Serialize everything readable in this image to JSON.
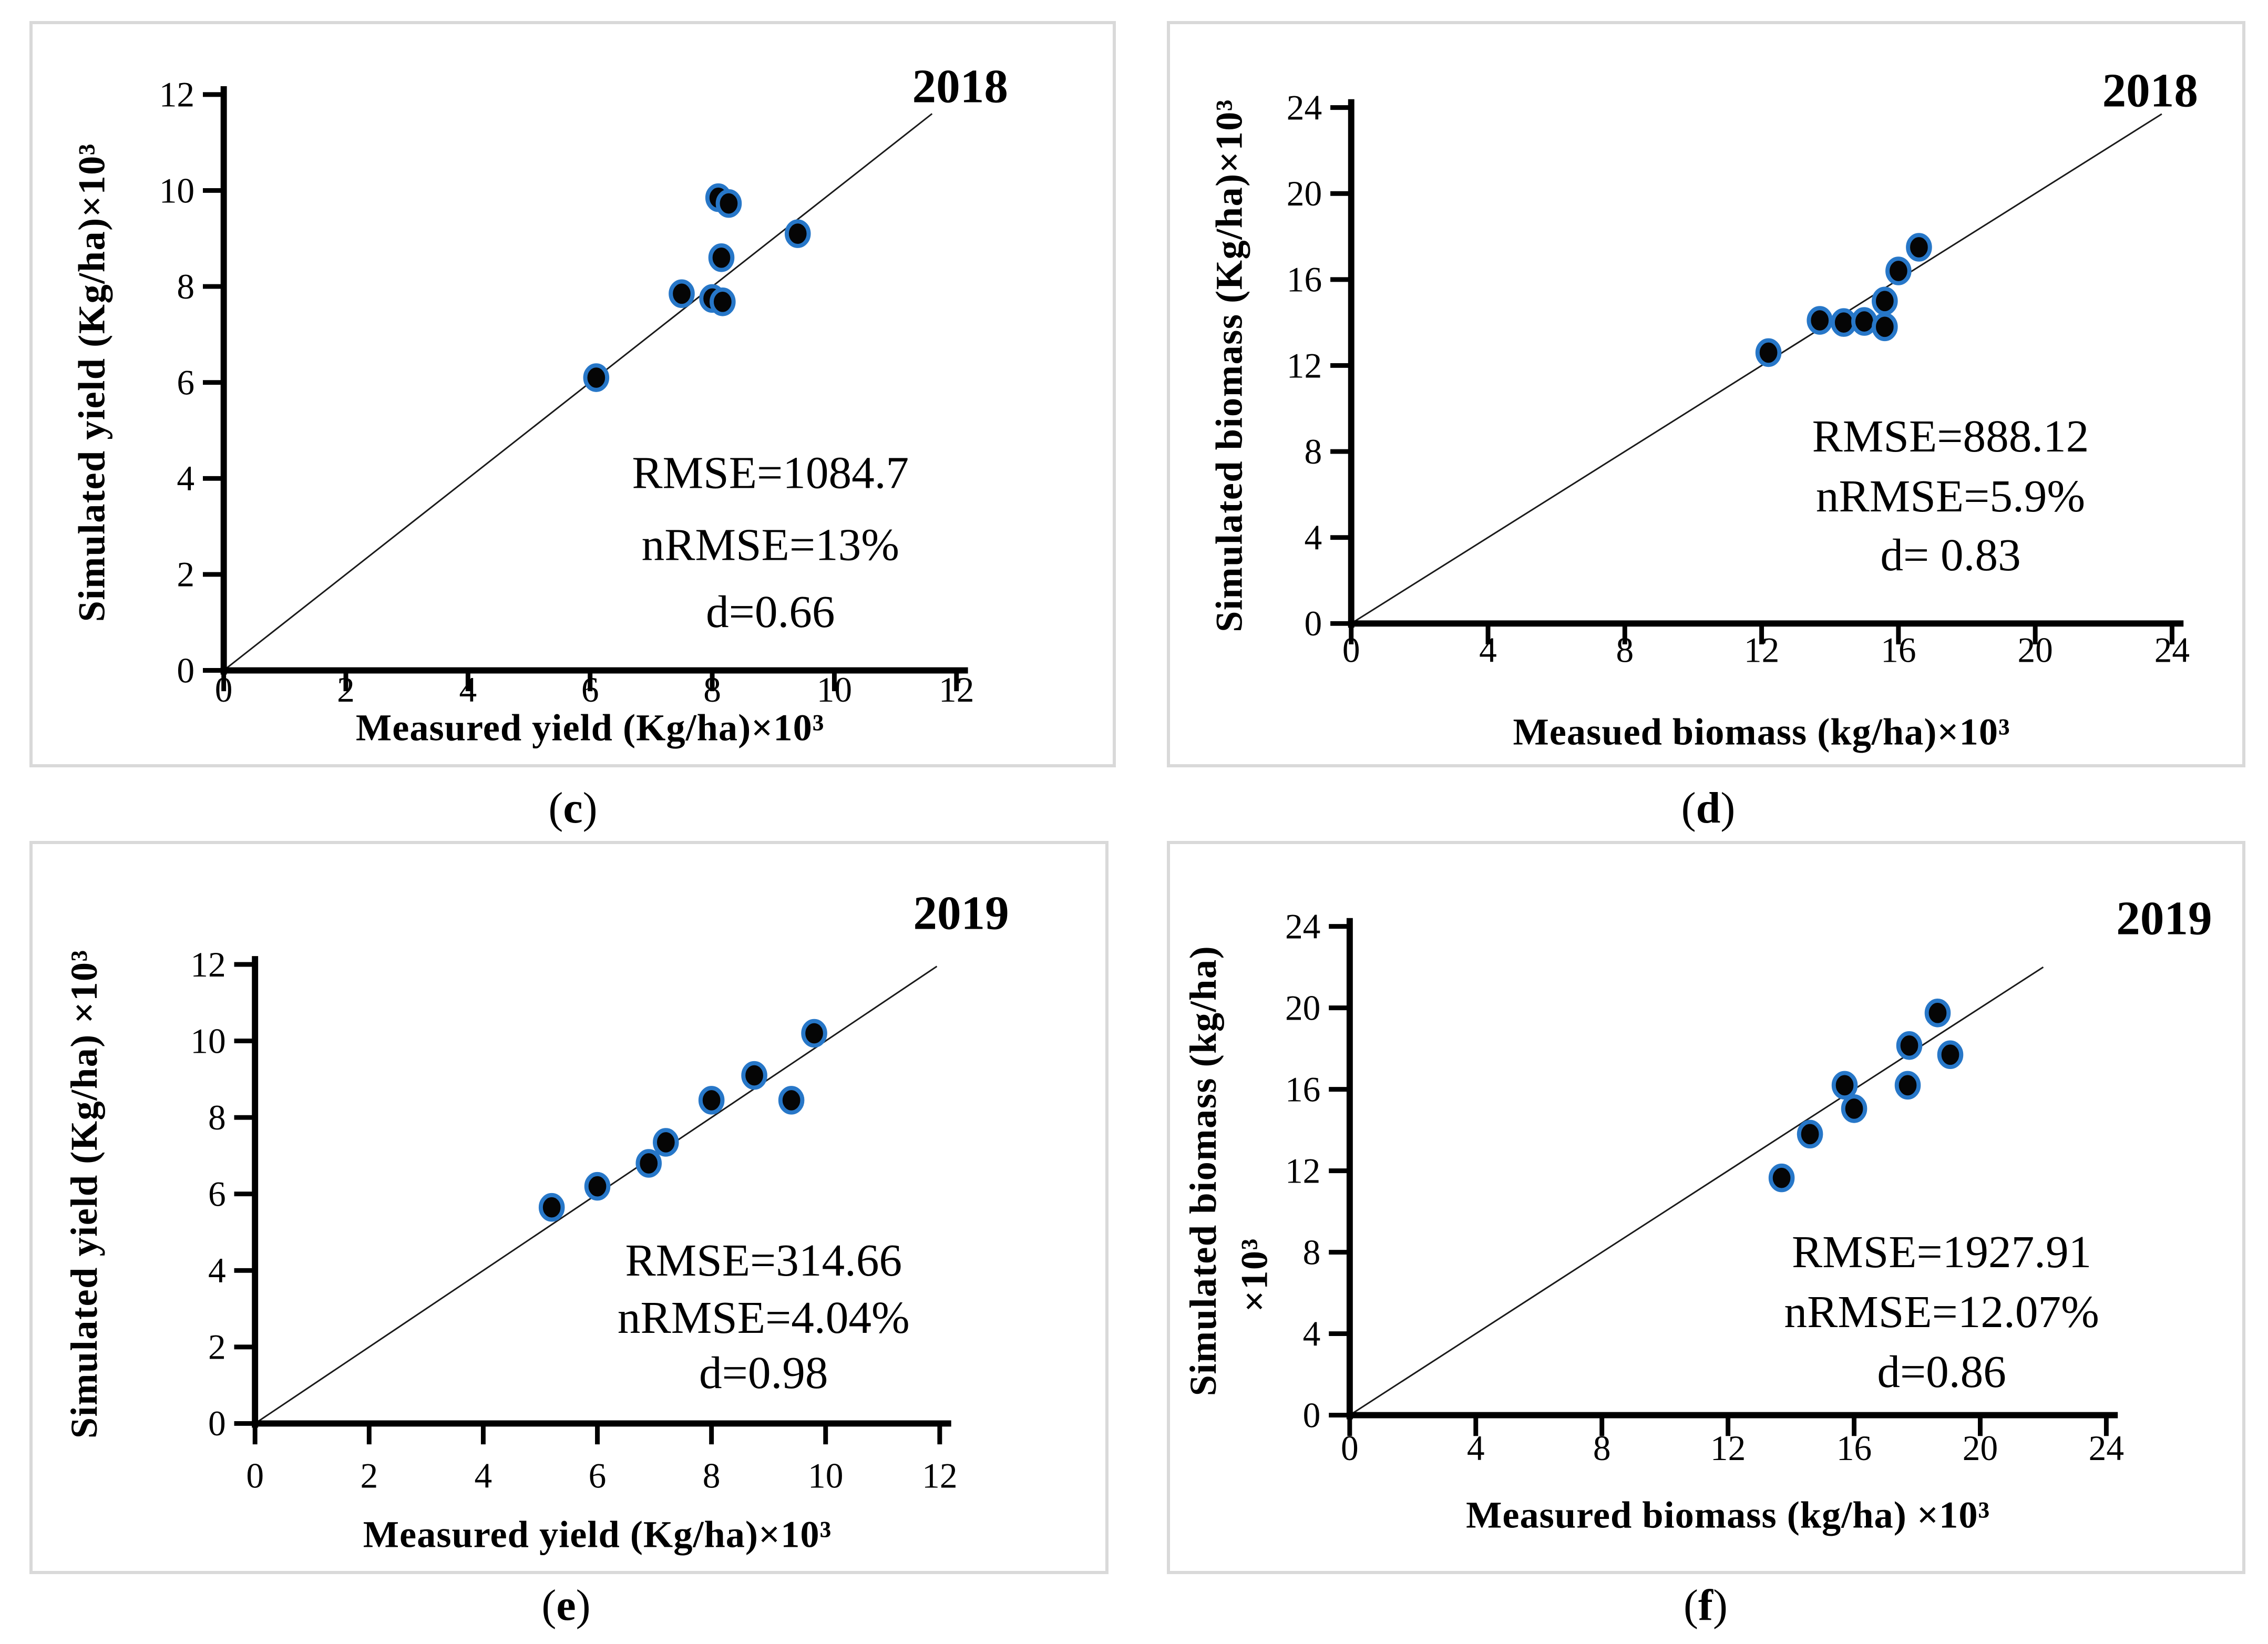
{
  "figure": {
    "colors": {
      "background": "#ffffff",
      "panel_border": "#d9d9d9",
      "axis": "#000000",
      "identity_line": "#1a1a1a",
      "marker_fill": "#050505",
      "marker_stroke": "#2777c8",
      "text": "#000000"
    }
  },
  "chart_data": [
    {
      "id": "c",
      "type": "scatter",
      "year_label": "2018",
      "xlabel": "Measured yield (Kg/ha)×10³",
      "ylabel_lines": [
        "Simulated yield (Kg/ha)×10³"
      ],
      "xlim": [
        0,
        12
      ],
      "ylim": [
        0,
        12
      ],
      "xticks": [
        0,
        2,
        4,
        6,
        8,
        10,
        12
      ],
      "yticks": [
        0,
        2,
        4,
        6,
        8,
        10,
        12
      ],
      "grid": false,
      "identity_line": {
        "x_start": 0,
        "x_end": 11.6
      },
      "annotations": [
        "RMSE=1084.7",
        "nRMSE=13%",
        "d=0.66"
      ],
      "caption": {
        "open": "(",
        "letter": "c",
        "close": ")"
      },
      "points": [
        {
          "x": 6.1,
          "y": 6.1
        },
        {
          "x": 7.5,
          "y": 7.85
        },
        {
          "x": 8.0,
          "y": 7.75
        },
        {
          "x": 8.17,
          "y": 7.68
        },
        {
          "x": 8.15,
          "y": 8.6
        },
        {
          "x": 8.1,
          "y": 9.85
        },
        {
          "x": 8.27,
          "y": 9.73
        },
        {
          "x": 9.4,
          "y": 9.1
        }
      ]
    },
    {
      "id": "d",
      "type": "scatter",
      "year_label": "2018",
      "xlabel": "Measued biomass (kg/ha)×10³",
      "ylabel_lines": [
        "Simulated  biomass (Kg/ha)×10³"
      ],
      "xlim": [
        0,
        24
      ],
      "ylim": [
        0,
        24
      ],
      "xticks": [
        0,
        4,
        8,
        12,
        16,
        20,
        24
      ],
      "yticks": [
        0,
        4,
        8,
        12,
        16,
        20,
        24
      ],
      "grid": false,
      "identity_line": {
        "x_start": 0,
        "x_end": 23.7
      },
      "annotations": [
        "RMSE=888.12",
        "nRMSE=5.9%",
        "d= 0.83"
      ],
      "caption": {
        "open": "(",
        "letter": "d",
        "close": ")"
      },
      "points": [
        {
          "x": 12.2,
          "y": 12.6
        },
        {
          "x": 13.7,
          "y": 14.1
        },
        {
          "x": 14.4,
          "y": 14.0
        },
        {
          "x": 15.0,
          "y": 14.05
        },
        {
          "x": 15.6,
          "y": 13.8
        },
        {
          "x": 15.6,
          "y": 15.0
        },
        {
          "x": 16.0,
          "y": 16.4
        },
        {
          "x": 16.6,
          "y": 17.5
        }
      ]
    },
    {
      "id": "e",
      "type": "scatter",
      "year_label": "2019",
      "xlabel": "Measured yield (Kg/ha)×10³",
      "ylabel_lines": [
        "Simulated yield (Kg/ha) ×10³"
      ],
      "xlim": [
        0,
        12
      ],
      "ylim": [
        0,
        12
      ],
      "xticks": [
        0,
        2,
        4,
        6,
        8,
        10,
        12
      ],
      "yticks": [
        0,
        2,
        4,
        6,
        8,
        10,
        12
      ],
      "grid": false,
      "identity_line": {
        "x_start": 0,
        "x_end": 11.95
      },
      "annotations": [
        "RMSE=314.66",
        "nRMSE=4.04%",
        "d=0.98"
      ],
      "caption": {
        "open": "(",
        "letter": "e",
        "close": ")"
      },
      "points": [
        {
          "x": 5.2,
          "y": 5.65
        },
        {
          "x": 6.0,
          "y": 6.2
        },
        {
          "x": 6.9,
          "y": 6.8
        },
        {
          "x": 7.2,
          "y": 7.35
        },
        {
          "x": 8.0,
          "y": 8.45
        },
        {
          "x": 8.75,
          "y": 9.1
        },
        {
          "x": 9.4,
          "y": 8.45
        },
        {
          "x": 9.8,
          "y": 10.2
        }
      ]
    },
    {
      "id": "f",
      "type": "scatter",
      "year_label": "2019",
      "xlabel": "Measured biomass (kg/ha) ×10³",
      "ylabel_lines": [
        "Simulated biomass (kg/ha)",
        "×10³"
      ],
      "xlim": [
        0,
        24
      ],
      "ylim": [
        0,
        24
      ],
      "xticks": [
        0,
        4,
        8,
        12,
        16,
        20,
        24
      ],
      "yticks": [
        0,
        4,
        8,
        12,
        16,
        20,
        24
      ],
      "grid": false,
      "identity_line": {
        "x_start": 0,
        "x_end": 22.0
      },
      "annotations": [
        "RMSE=1927.91",
        "nRMSE=12.07%",
        "d=0.86"
      ],
      "caption": {
        "open": "(",
        "letter": "f",
        "close": ")"
      },
      "points": [
        {
          "x": 13.7,
          "y": 11.65
        },
        {
          "x": 14.6,
          "y": 13.8
        },
        {
          "x": 15.7,
          "y": 16.2
        },
        {
          "x": 16.0,
          "y": 15.05
        },
        {
          "x": 17.7,
          "y": 16.2
        },
        {
          "x": 17.75,
          "y": 18.15
        },
        {
          "x": 18.65,
          "y": 19.75
        },
        {
          "x": 19.05,
          "y": 17.7
        }
      ]
    }
  ]
}
